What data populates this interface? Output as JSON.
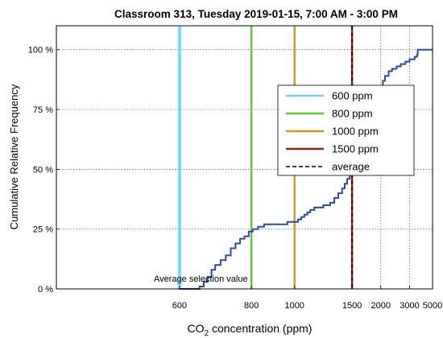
{
  "chart_data": {
    "type": "line",
    "title": "Classroom 313, Tuesday 2019-01-15, 7:00 AM - 3:00 PM",
    "xlabel": "CO2 concentration (ppm)",
    "xlabel_main": "CO",
    "xlabel_sub": "2",
    "xlabel_rest": " concentration (ppm)",
    "ylabel": "Cumulative Relative Frequency",
    "x_scale": "reciprocal",
    "xlim": [
      420,
      5000
    ],
    "ylim": [
      0,
      110
    ],
    "x_ticks": [
      600,
      800,
      1000,
      1500,
      2000,
      3000,
      5000
    ],
    "y_ticks": [
      0,
      25,
      50,
      75,
      100
    ],
    "y_tick_labels": [
      "0 %",
      "25 %",
      "50 %",
      "75 %",
      "100 %"
    ],
    "grid": true,
    "legend_position": "right",
    "annotation": "Average selection value",
    "colors": {
      "cdf": "#2b4aa0",
      "ppm600": "#7ec8f0",
      "ppm800": "#5cc83a",
      "ppm1000": "#c89a1e",
      "ppm1500": "#8a2a12",
      "average": "#000000",
      "ppm600_halo": "#2ee8f0"
    },
    "reference_lines": [
      {
        "name": "600 ppm",
        "x": 600,
        "style": "solid",
        "color_key": "ppm600"
      },
      {
        "name": "800 ppm",
        "x": 800,
        "style": "solid",
        "color_key": "ppm800"
      },
      {
        "name": "1000 ppm",
        "x": 1000,
        "style": "solid",
        "color_key": "ppm1000"
      },
      {
        "name": "1500 ppm",
        "x": 1500,
        "style": "solid",
        "color_key": "ppm1500"
      },
      {
        "name": "average",
        "x": 1500,
        "style": "dashed",
        "color_key": "average"
      }
    ],
    "series": [
      {
        "name": "",
        "color_key": "cdf",
        "points": [
          [
            600,
            0
          ],
          [
            640,
            0
          ],
          [
            645,
            1
          ],
          [
            655,
            3
          ],
          [
            665,
            5
          ],
          [
            675,
            8
          ],
          [
            685,
            10
          ],
          [
            700,
            12
          ],
          [
            715,
            14
          ],
          [
            730,
            17
          ],
          [
            745,
            19
          ],
          [
            760,
            21
          ],
          [
            775,
            22
          ],
          [
            790,
            24
          ],
          [
            805,
            25
          ],
          [
            825,
            26
          ],
          [
            850,
            27
          ],
          [
            910,
            27
          ],
          [
            960,
            28
          ],
          [
            1000,
            28
          ],
          [
            1020,
            29
          ],
          [
            1040,
            30
          ],
          [
            1060,
            31
          ],
          [
            1080,
            32
          ],
          [
            1100,
            33
          ],
          [
            1130,
            34
          ],
          [
            1200,
            35
          ],
          [
            1260,
            36
          ],
          [
            1300,
            38
          ],
          [
            1340,
            40
          ],
          [
            1380,
            42
          ],
          [
            1410,
            44
          ],
          [
            1440,
            46
          ],
          [
            1470,
            48
          ],
          [
            1490,
            50
          ],
          [
            1520,
            51
          ],
          [
            1550,
            52
          ],
          [
            1580,
            54
          ],
          [
            1620,
            55
          ],
          [
            1640,
            57
          ],
          [
            1660,
            59
          ],
          [
            1680,
            61
          ],
          [
            1700,
            63
          ],
          [
            1730,
            65
          ],
          [
            1750,
            67
          ],
          [
            1780,
            69
          ],
          [
            1800,
            71
          ],
          [
            1830,
            73
          ],
          [
            1860,
            75
          ],
          [
            1880,
            77
          ],
          [
            1900,
            79
          ],
          [
            1930,
            81
          ],
          [
            1960,
            83
          ],
          [
            2000,
            85
          ],
          [
            2050,
            87
          ],
          [
            2100,
            89
          ],
          [
            2200,
            91
          ],
          [
            2300,
            92
          ],
          [
            2450,
            93
          ],
          [
            2600,
            94
          ],
          [
            2800,
            95
          ],
          [
            3000,
            96
          ],
          [
            3300,
            97
          ],
          [
            3450,
            98
          ],
          [
            3500,
            100
          ],
          [
            5000,
            100
          ]
        ]
      }
    ]
  }
}
